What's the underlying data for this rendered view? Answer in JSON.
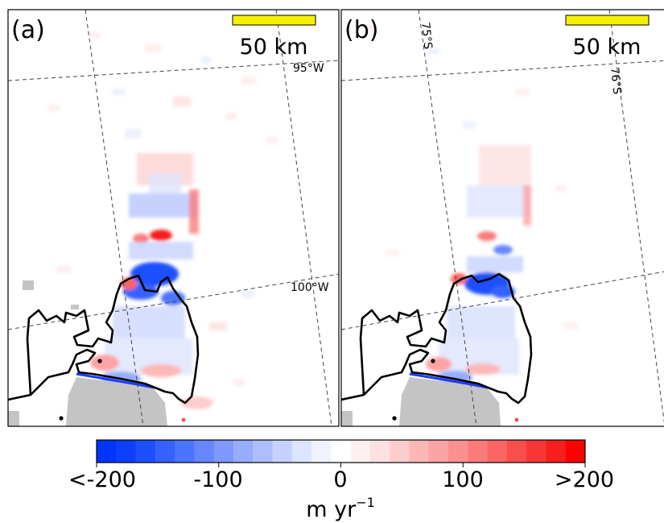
{
  "panels": [
    {
      "label": "(a)",
      "scale_bar": {
        "label": "50 km",
        "color": "#f5f000"
      },
      "graticule_labels": [
        "95°W",
        "100°W"
      ]
    },
    {
      "label": "(b)",
      "scale_bar": {
        "label": "50 km",
        "color": "#f5f000"
      },
      "graticule_labels": [
        "75°S",
        "76°S"
      ]
    }
  ],
  "colorbar": {
    "ticks": [
      "<-200",
      "-100",
      "0",
      "100",
      ">200"
    ],
    "unit_prefix": "m yr",
    "unit_exponent": "−1",
    "colors": [
      "#0034ff",
      "#0c3fff",
      "#1e4fff",
      "#3562ff",
      "#4c74ff",
      "#6586ff",
      "#7e98fe",
      "#96acfd",
      "#aebefd",
      "#c6d2fd",
      "#dde4fd",
      "#f0f3fd",
      "#ffffff",
      "#fdf0f0",
      "#fde0e0",
      "#fdcccc",
      "#fdb7b7",
      "#fca3a3",
      "#fc8f8f",
      "#fb7a7a",
      "#fa6464",
      "#f94e4e",
      "#f83636",
      "#f71e1e",
      "#ff0000"
    ]
  },
  "colors": {
    "rock_mask": "#c4c4c4",
    "grounding_line": "#000000",
    "ice_front": "#1a3cff",
    "graticule": "#444444"
  }
}
